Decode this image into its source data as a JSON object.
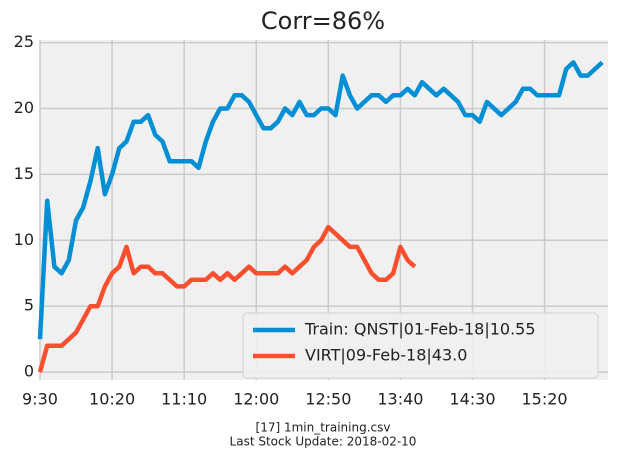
{
  "chart_data": {
    "type": "line",
    "title": "Corr=86%",
    "footer": [
      "[17] 1min_training.csv",
      "Last Stock Update: 2018-02-10"
    ],
    "x": [
      "9:30",
      "9:35",
      "9:40",
      "9:45",
      "9:50",
      "9:55",
      "10:00",
      "10:05",
      "10:10",
      "10:15",
      "10:20",
      "10:25",
      "10:30",
      "10:35",
      "10:40",
      "10:45",
      "10:50",
      "10:55",
      "11:00",
      "11:05",
      "11:10",
      "11:15",
      "11:20",
      "11:25",
      "11:30",
      "11:35",
      "11:40",
      "11:45",
      "11:50",
      "11:55",
      "12:00",
      "12:05",
      "12:10",
      "12:15",
      "12:20",
      "12:25",
      "12:30",
      "12:35",
      "12:40",
      "12:45",
      "12:50",
      "12:55",
      "13:00",
      "13:05",
      "13:10",
      "13:15",
      "13:20",
      "13:25",
      "13:30",
      "13:35",
      "13:40",
      "13:45",
      "13:50",
      "13:55",
      "14:00",
      "14:05",
      "14:10",
      "14:15",
      "14:20",
      "14:25",
      "14:30",
      "14:35",
      "14:40",
      "14:45",
      "14:50",
      "14:55",
      "15:00",
      "15:05",
      "15:10",
      "15:15",
      "15:20",
      "15:25",
      "15:30",
      "15:35",
      "15:40",
      "15:45",
      "15:50",
      "15:55",
      "16:00"
    ],
    "series": [
      {
        "name": "Train: QNST|01-Feb-18|10.55",
        "color": "#008fd5",
        "values": [
          2.5,
          13,
          8,
          7.5,
          8.5,
          11.5,
          12.5,
          14.5,
          17,
          13.5,
          15,
          17,
          17.5,
          19,
          19,
          19.5,
          18,
          17.5,
          16,
          16,
          16,
          16,
          15.5,
          17.5,
          19,
          20,
          20,
          21,
          21,
          20.5,
          19.5,
          18.5,
          18.5,
          19,
          20,
          19.5,
          20.5,
          19.5,
          19.5,
          20,
          20,
          19.5,
          22.5,
          21,
          20,
          20.5,
          21,
          21,
          20.5,
          21,
          21,
          21.5,
          21,
          22,
          21.5,
          21,
          21.5,
          21,
          20.5,
          19.5,
          19.5,
          19,
          20.5,
          20,
          19.5,
          20,
          20.5,
          21.5,
          21.5,
          21,
          21,
          21,
          21,
          23,
          23.5,
          22.5,
          22.5,
          23,
          23.5
        ]
      },
      {
        "name": "VIRT|09-Feb-18|43.0",
        "color": "#fc4f30",
        "values": [
          0,
          2,
          2,
          2,
          2.5,
          3,
          4,
          5,
          5,
          6.5,
          7.5,
          8,
          9.5,
          7.5,
          8,
          8,
          7.5,
          7.5,
          7,
          6.5,
          6.5,
          7,
          7,
          7,
          7.5,
          7,
          7.5,
          7,
          7.5,
          8,
          7.5,
          7.5,
          7.5,
          7.5,
          8,
          7.5,
          8,
          8.5,
          9.5,
          10,
          11,
          10.5,
          10,
          9.5,
          9.5,
          8.5,
          7.5,
          7,
          7,
          7.5,
          9.5,
          8.5,
          8,
          null,
          null,
          null,
          null,
          null,
          null,
          null,
          null,
          null,
          null,
          null,
          null,
          null,
          null,
          null,
          null,
          null,
          null,
          null,
          null,
          null,
          null,
          null,
          null,
          null,
          null
        ]
      }
    ],
    "xlim": [
      "9:30",
      "16:04"
    ],
    "xticks": [
      "9:30",
      "10:20",
      "11:10",
      "12:00",
      "12:50",
      "13:40",
      "14:30",
      "15:20"
    ],
    "ylim": [
      -0.6,
      25.2
    ],
    "yticks": [
      0,
      5,
      10,
      15,
      20,
      25
    ],
    "grid": true,
    "legend": "lower right"
  }
}
